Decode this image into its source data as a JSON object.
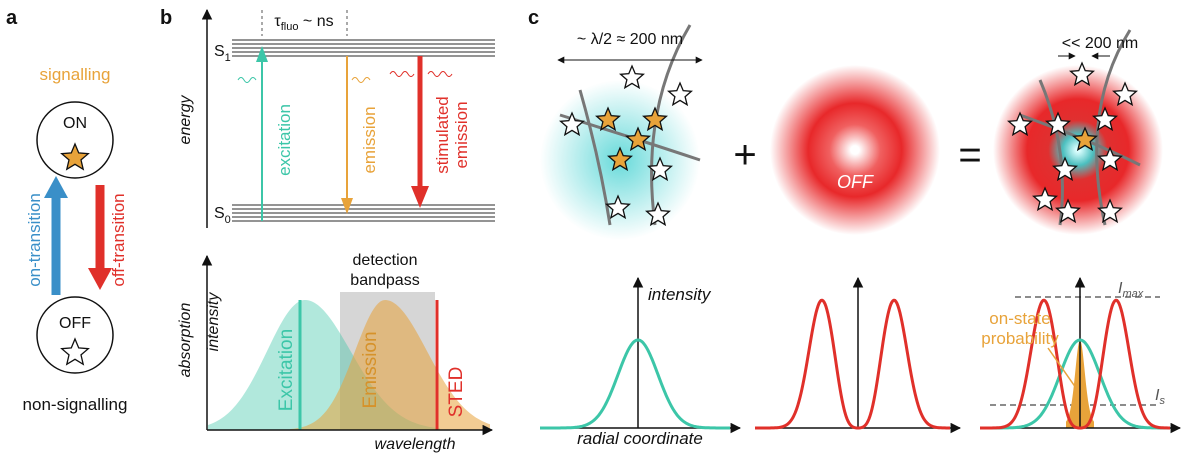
{
  "panel_a": {
    "label": "a",
    "signalling": "signalling",
    "on": "ON",
    "off": "OFF",
    "on_transition": "on-transition",
    "off_transition": "off-transition",
    "non_signalling": "non-signalling"
  },
  "panel_b": {
    "label": "b",
    "lifetime": {
      "symbol": "τ",
      "subscript": "fluo",
      "rest": " ~ ns"
    },
    "s1": {
      "symbol": "S",
      "subscript": "1"
    },
    "s0": {
      "symbol": "S",
      "subscript": "0"
    },
    "energy_axis": "energy",
    "excitation": "excitation",
    "emission": "emission",
    "stimulated_emission": [
      "stimulated",
      "emission"
    ],
    "spectrum": {
      "y_label": [
        "absorption",
        "intensity"
      ],
      "bandpass": [
        "detection",
        "bandpass"
      ],
      "excitation": "Excitation",
      "emission": "Emission",
      "sted": "STED",
      "x_label": "wavelength"
    }
  },
  "panel_c": {
    "label": "c",
    "size": "~ λ/2 ≈ 200 nm",
    "plus": "+",
    "equals": "=",
    "off": "OFF",
    "small_size": "<< 200 nm",
    "y_label": "intensity",
    "x_label": "radial coordinate",
    "on_state": [
      "on-state",
      "probability"
    ],
    "i_max": {
      "symbol": "I",
      "subscript": "max"
    },
    "i_s": {
      "symbol": "I",
      "subscript": "s"
    }
  }
}
